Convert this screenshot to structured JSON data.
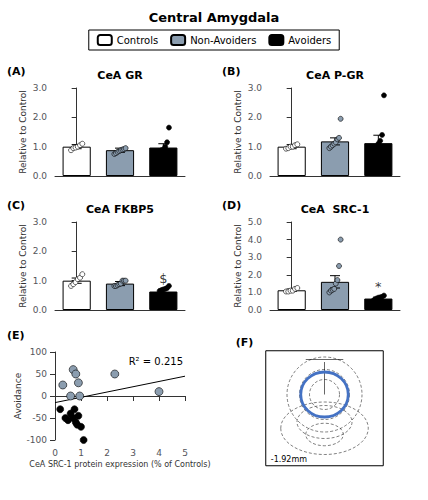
{
  "title": "Central Amygdala",
  "legend": "top",
  "chart_data": [
    {
      "type": "bar",
      "panel": "(A)",
      "title": "CeA GR",
      "ylabel": "Relative to Control",
      "categories": [
        "Controls",
        "Non-Avoiders",
        "Avoiders"
      ],
      "colors": [
        "white",
        "#8B9DAF",
        "black"
      ],
      "values": [
        1.0,
        0.88,
        0.97
      ],
      "errors": [
        0.07,
        0.07,
        0.13
      ],
      "points": [
        [
          0.88,
          0.95,
          0.97,
          1.0,
          1.05,
          1.1
        ],
        [
          0.75,
          0.78,
          0.82,
          0.85,
          0.88,
          0.9,
          0.92,
          0.95
        ],
        [
          0.78,
          0.83,
          0.88,
          0.9,
          1.0,
          1.15,
          1.65
        ]
      ],
      "ylim": [
        0.0,
        3.0
      ],
      "yticks": [
        {
          "value": 0.0,
          "label": "0.0"
        },
        {
          "value": 1.0,
          "label": "1.0"
        },
        {
          "value": 2.0,
          "label": "2.0"
        },
        {
          "value": 3.0,
          "label": "3.0"
        }
      ],
      "tick_labels": "y",
      "grid": false
    },
    {
      "type": "bar",
      "panel": "(B)",
      "title": "CeA P-GR",
      "ylabel": "Relative to Control",
      "categories": [
        "Controls",
        "Non-Avoiders",
        "Avoiders"
      ],
      "colors": [
        "white",
        "#8B9DAF",
        "black"
      ],
      "values": [
        1.0,
        1.18,
        1.12
      ],
      "errors": [
        0.07,
        0.12,
        0.27
      ],
      "points": [
        [
          0.93,
          0.95,
          1.0,
          1.0,
          1.05,
          1.08
        ],
        [
          0.95,
          1.0,
          1.05,
          1.1,
          1.15,
          1.25,
          1.3,
          1.95
        ],
        [
          0.75,
          0.85,
          1.0,
          1.1,
          1.2,
          1.4,
          2.75
        ]
      ],
      "ylim": [
        0.0,
        3.0
      ],
      "yticks": [
        {
          "value": 0.0,
          "label": "0.0"
        },
        {
          "value": 1.0,
          "label": "1.0"
        },
        {
          "value": 2.0,
          "label": "2.0"
        },
        {
          "value": 3.0,
          "label": "3.0"
        }
      ],
      "tick_labels": "y",
      "grid": false
    },
    {
      "type": "bar",
      "panel": "(C)",
      "title": "CeA FKBP5",
      "ylabel": "Relative to Control",
      "categories": [
        "Controls",
        "Non-Avoiders",
        "Avoiders"
      ],
      "colors": [
        "white",
        "#8B9DAF",
        "black"
      ],
      "values": [
        1.0,
        0.9,
        0.63
      ],
      "errors": [
        0.09,
        0.07,
        0.08
      ],
      "points": [
        [
          0.82,
          0.88,
          0.95,
          1.05,
          1.1,
          1.22
        ],
        [
          0.82,
          0.82,
          0.85,
          0.88,
          0.9,
          1.0,
          1.0,
          1.0
        ],
        [
          0.48,
          0.65,
          0.68,
          0.7,
          0.72,
          0.75,
          0.82
        ]
      ],
      "ylim": [
        0.0,
        3.0
      ],
      "yticks": [
        {
          "value": 0.0,
          "label": "0.0"
        },
        {
          "value": 1.0,
          "label": "1.0"
        },
        {
          "value": 2.0,
          "label": "2.0"
        },
        {
          "value": 3.0,
          "label": "3.0"
        }
      ],
      "annotations": [
        {
          "text": "$",
          "category": "Avoiders"
        }
      ],
      "tick_labels": "y",
      "grid": false
    },
    {
      "type": "bar",
      "panel": "(D)",
      "title": "CeA  SRC-1",
      "ylabel": "Relative to Control",
      "categories": [
        "Controls",
        "Non-Avoiders",
        "Avoiders"
      ],
      "colors": [
        "white",
        "#8B9DAF",
        "black"
      ],
      "values": [
        1.12,
        1.6,
        0.65
      ],
      "errors": [
        0.07,
        0.35,
        0.08
      ],
      "points": [
        [
          1.05,
          1.05,
          1.1,
          1.1,
          1.2,
          1.25
        ],
        [
          1.0,
          1.1,
          1.15,
          1.2,
          1.5,
          1.7,
          2.5,
          4.0
        ],
        [
          0.5,
          0.6,
          0.65,
          0.7,
          0.72,
          0.75,
          0.82
        ]
      ],
      "ylim": [
        0.0,
        5.0
      ],
      "yticks": [
        {
          "value": 0.0,
          "label": "0.0"
        },
        {
          "value": 1.0,
          "label": "1.0"
        },
        {
          "value": 2.0,
          "label": "2.0"
        },
        {
          "value": 3.0,
          "label": "3.0"
        },
        {
          "value": 4.0,
          "label": "4.0"
        },
        {
          "value": 5.0,
          "label": "5.0"
        }
      ],
      "annotations": [
        {
          "text": "*",
          "category": "Avoiders"
        }
      ],
      "tick_labels": "y",
      "grid": false
    },
    {
      "type": "scatter",
      "panel": "(E)",
      "xlabel": "CeA SRC-1 protein expression (% of Controls)",
      "ylabel": "Avoidance",
      "xlim": [
        0,
        5
      ],
      "ylim": [
        -100,
        100
      ],
      "xticks": [
        0,
        1,
        2,
        3,
        4,
        5
      ],
      "yticks": [
        -100,
        -50,
        0,
        50,
        100
      ],
      "series": [
        {
          "name": "Non-Avoiders",
          "type": "scatter",
          "color": "#8B9DAF",
          "values": [
            [
              0.3,
              25
            ],
            [
              0.6,
              0
            ],
            [
              0.7,
              60
            ],
            [
              0.8,
              50
            ],
            [
              0.9,
              30
            ],
            [
              0.95,
              0
            ],
            [
              2.3,
              50
            ],
            [
              4.0,
              10
            ]
          ]
        },
        {
          "name": "Avoiders",
          "type": "scatter",
          "color": "black",
          "values": [
            [
              0.2,
              -30
            ],
            [
              0.4,
              -50
            ],
            [
              0.5,
              -55
            ],
            [
              0.6,
              -40
            ],
            [
              0.7,
              -50
            ],
            [
              0.75,
              -30
            ],
            [
              0.8,
              -60
            ],
            [
              0.85,
              -65
            ],
            [
              0.9,
              -45
            ],
            [
              1.0,
              -70
            ],
            [
              1.1,
              -100
            ]
          ]
        },
        {
          "type": "line",
          "color": "black",
          "x": [
            0,
            5
          ],
          "values": [
            -15,
            45
          ]
        }
      ],
      "annotations": [
        {
          "text": "R² = 0.215"
        }
      ],
      "grid": false
    },
    {
      "type": "diagram",
      "panel": "(F)",
      "color": "#4472C4",
      "annotations": [
        {
          "text": "-1.92mm"
        }
      ]
    }
  ]
}
